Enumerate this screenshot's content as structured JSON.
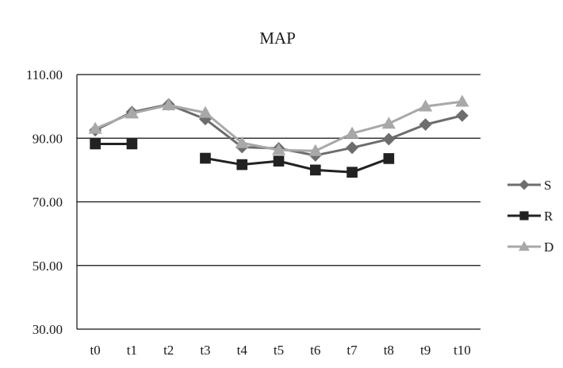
{
  "chart_data": {
    "type": "line",
    "title": "MAP",
    "xlabel": "",
    "ylabel": "",
    "categories": [
      "t0",
      "t1",
      "t2",
      "t3",
      "t4",
      "t5",
      "t6",
      "t7",
      "t8",
      "t9",
      "t10"
    ],
    "ylim": [
      30,
      110
    ],
    "yticks": [
      "110.00",
      "90.00",
      "70.00",
      "50.00",
      "30.00"
    ],
    "grid": "horizontal",
    "legend_position": "right",
    "series": [
      {
        "name": "S",
        "marker": "diamond",
        "color": "#6d6d6d",
        "values": [
          92.5,
          98.2,
          100.6,
          96.0,
          87.2,
          86.8,
          84.6,
          87.0,
          89.7,
          94.3,
          97.1
        ]
      },
      {
        "name": "R",
        "marker": "square",
        "color": "#222222",
        "values": [
          88.2,
          88.2,
          null,
          83.7,
          81.7,
          82.8,
          80.0,
          79.3,
          83.6,
          null,
          null
        ]
      },
      {
        "name": "D",
        "marker": "triangle",
        "color": "#a8a8a8",
        "values": [
          93.0,
          97.8,
          100.4,
          98.0,
          88.5,
          86.3,
          86.0,
          91.5,
          94.6,
          100.0,
          101.5
        ]
      }
    ]
  }
}
